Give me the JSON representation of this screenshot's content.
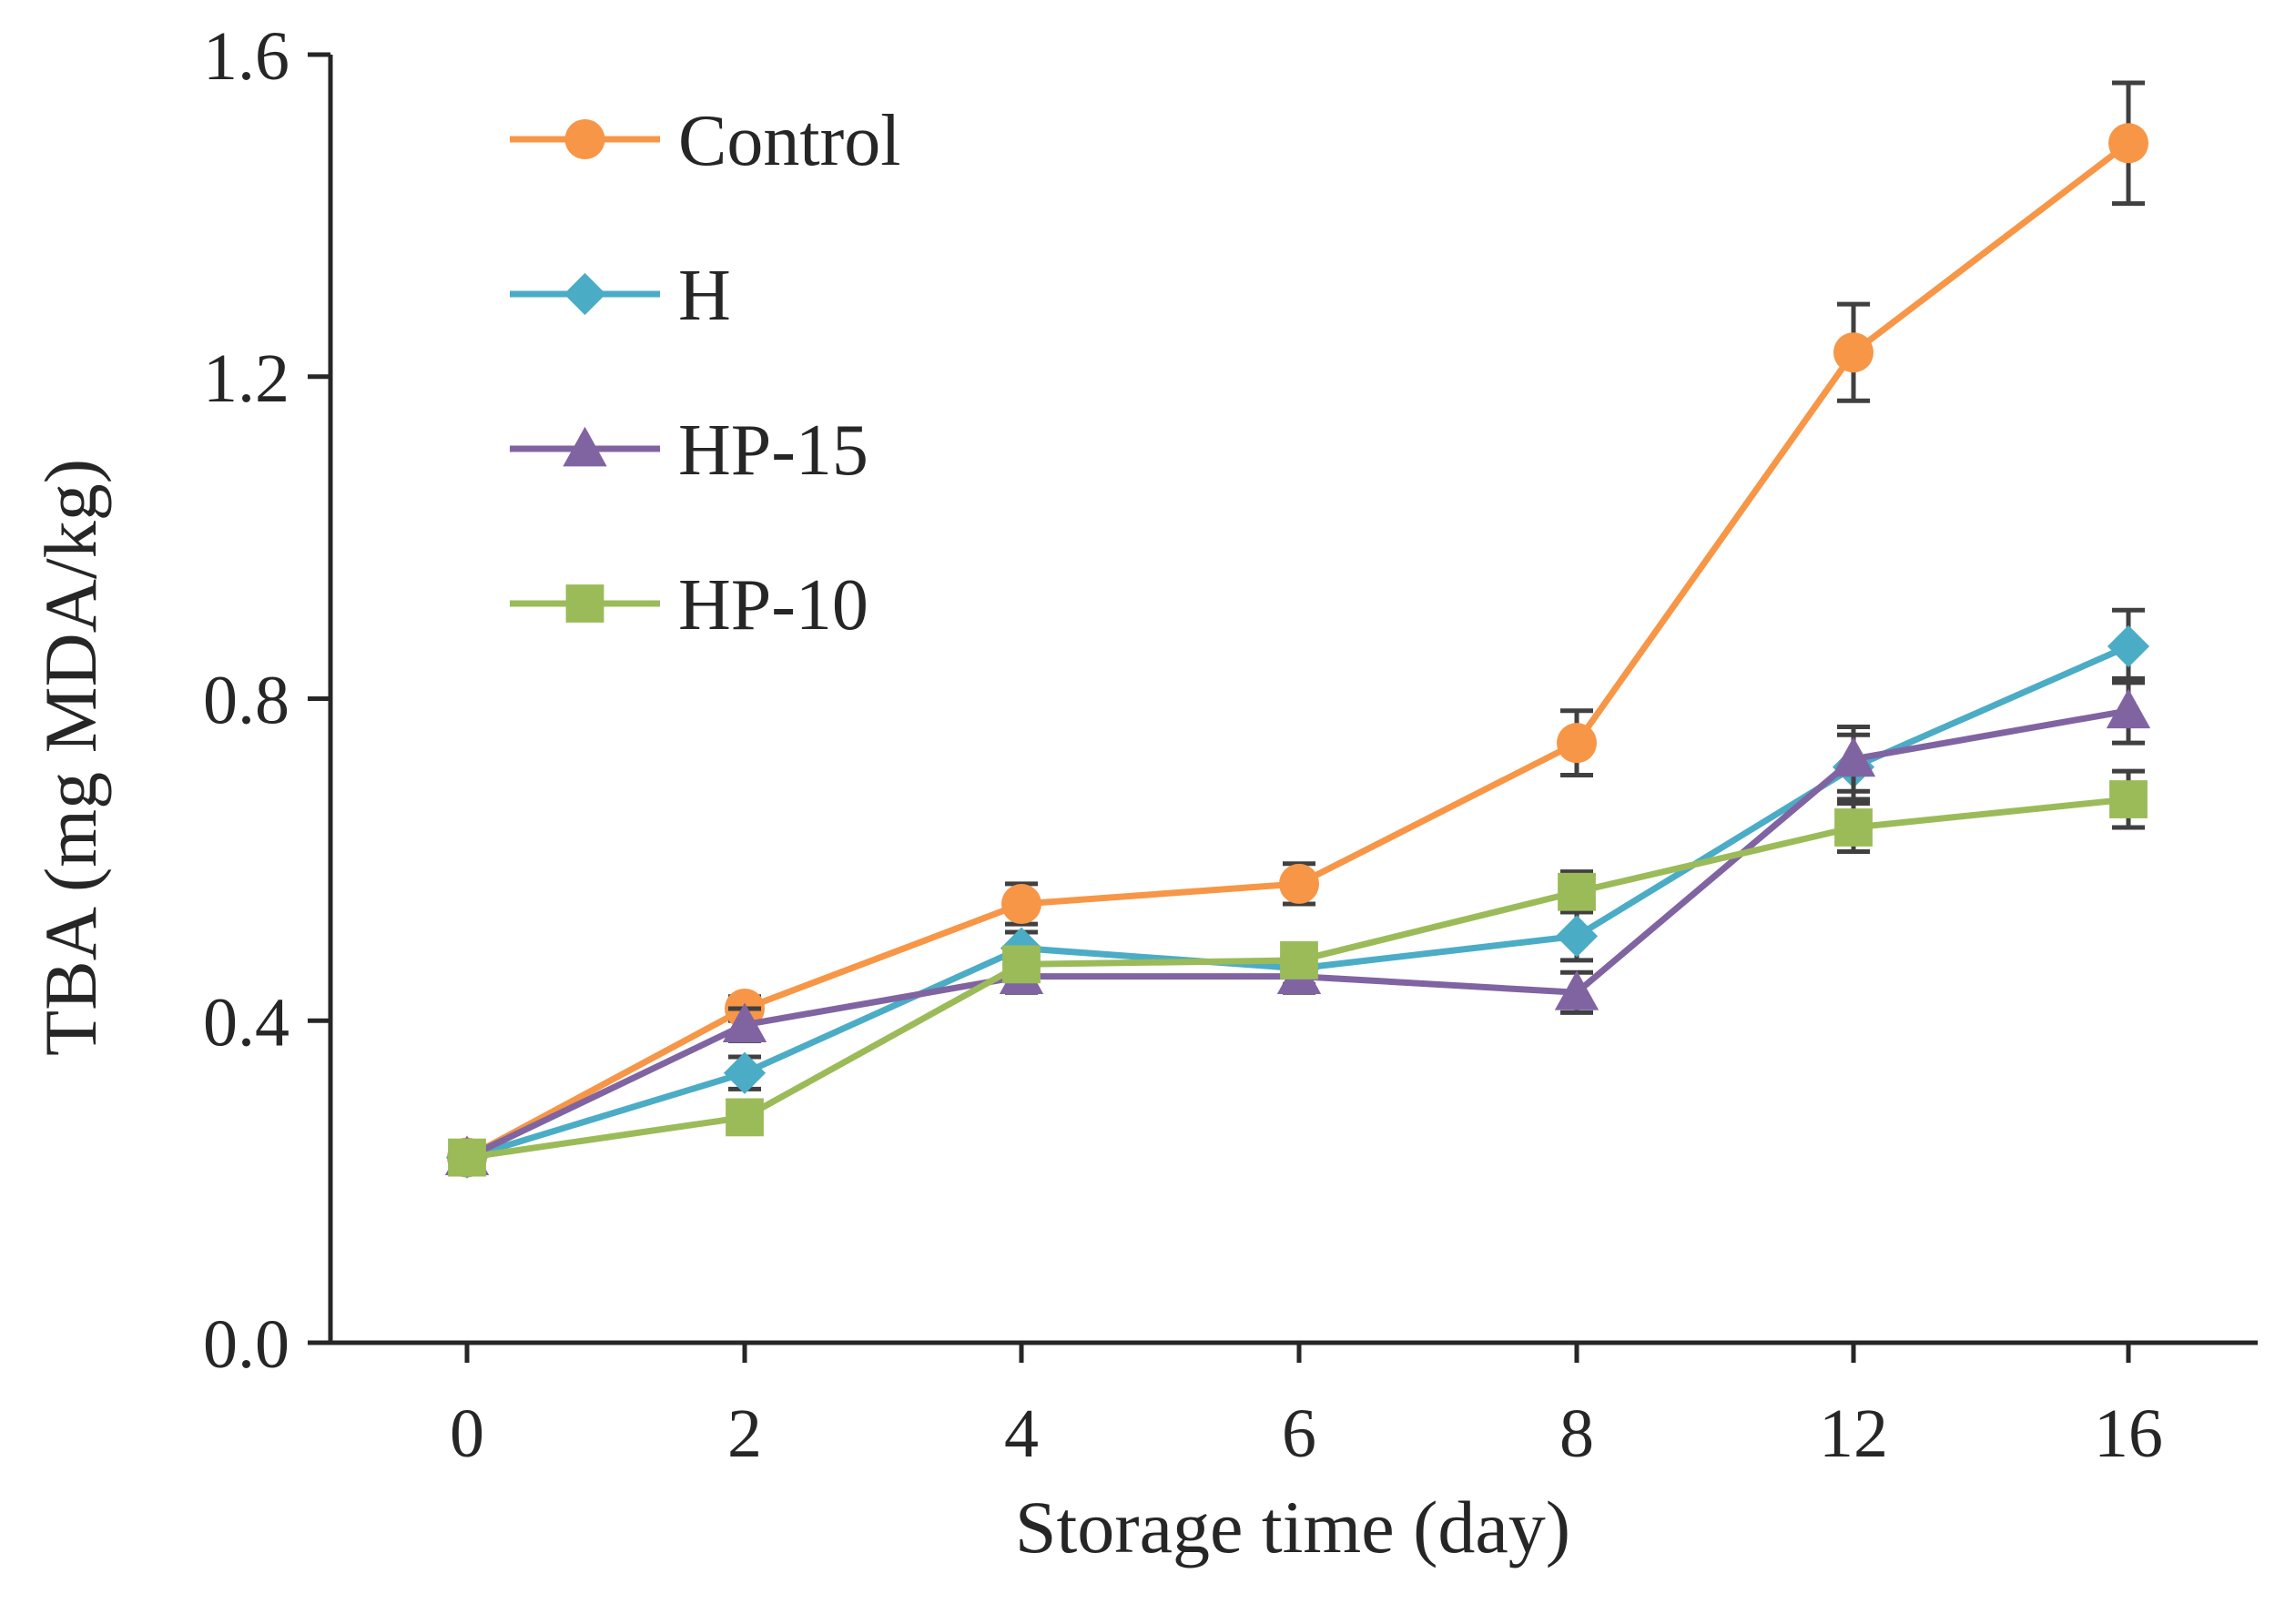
{
  "chart_data": {
    "type": "line",
    "title": "",
    "xlabel": "Storage time (day)",
    "ylabel": "TBA (mg MDA/kg)",
    "categories": [
      "0",
      "2",
      "4",
      "6",
      "8",
      "12",
      "16"
    ],
    "ylim": [
      0.0,
      1.6
    ],
    "yticks": [
      "0.0",
      "0.4",
      "0.8",
      "1.2",
      "1.6"
    ],
    "grid": false,
    "legend_position": "top-left",
    "series": [
      {
        "name": "Control",
        "color": "#F79646",
        "marker": "circle",
        "values": [
          0.23,
          0.415,
          0.545,
          0.57,
          0.745,
          1.23,
          1.49
        ],
        "errors": [
          0.01,
          0.015,
          0.025,
          0.025,
          0.04,
          0.06,
          0.075
        ]
      },
      {
        "name": "H",
        "color": "#4BACC6",
        "marker": "diamond",
        "values": [
          0.23,
          0.335,
          0.49,
          0.465,
          0.505,
          0.715,
          0.865
        ],
        "errors": [
          0.01,
          0.02,
          0.02,
          0.02,
          0.03,
          0.04,
          0.045
        ]
      },
      {
        "name": "HP-15",
        "color": "#8064A2",
        "marker": "triangle",
        "values": [
          0.23,
          0.395,
          0.455,
          0.455,
          0.435,
          0.725,
          0.785
        ],
        "errors": [
          0.01,
          0.02,
          0.02,
          0.02,
          0.025,
          0.04,
          0.04
        ]
      },
      {
        "name": "HP-10",
        "color": "#9BBB59",
        "marker": "square",
        "values": [
          0.23,
          0.28,
          0.47,
          0.475,
          0.56,
          0.64,
          0.675
        ],
        "errors": [
          0.01,
          0.015,
          0.02,
          0.02,
          0.025,
          0.03,
          0.035
        ]
      }
    ]
  }
}
